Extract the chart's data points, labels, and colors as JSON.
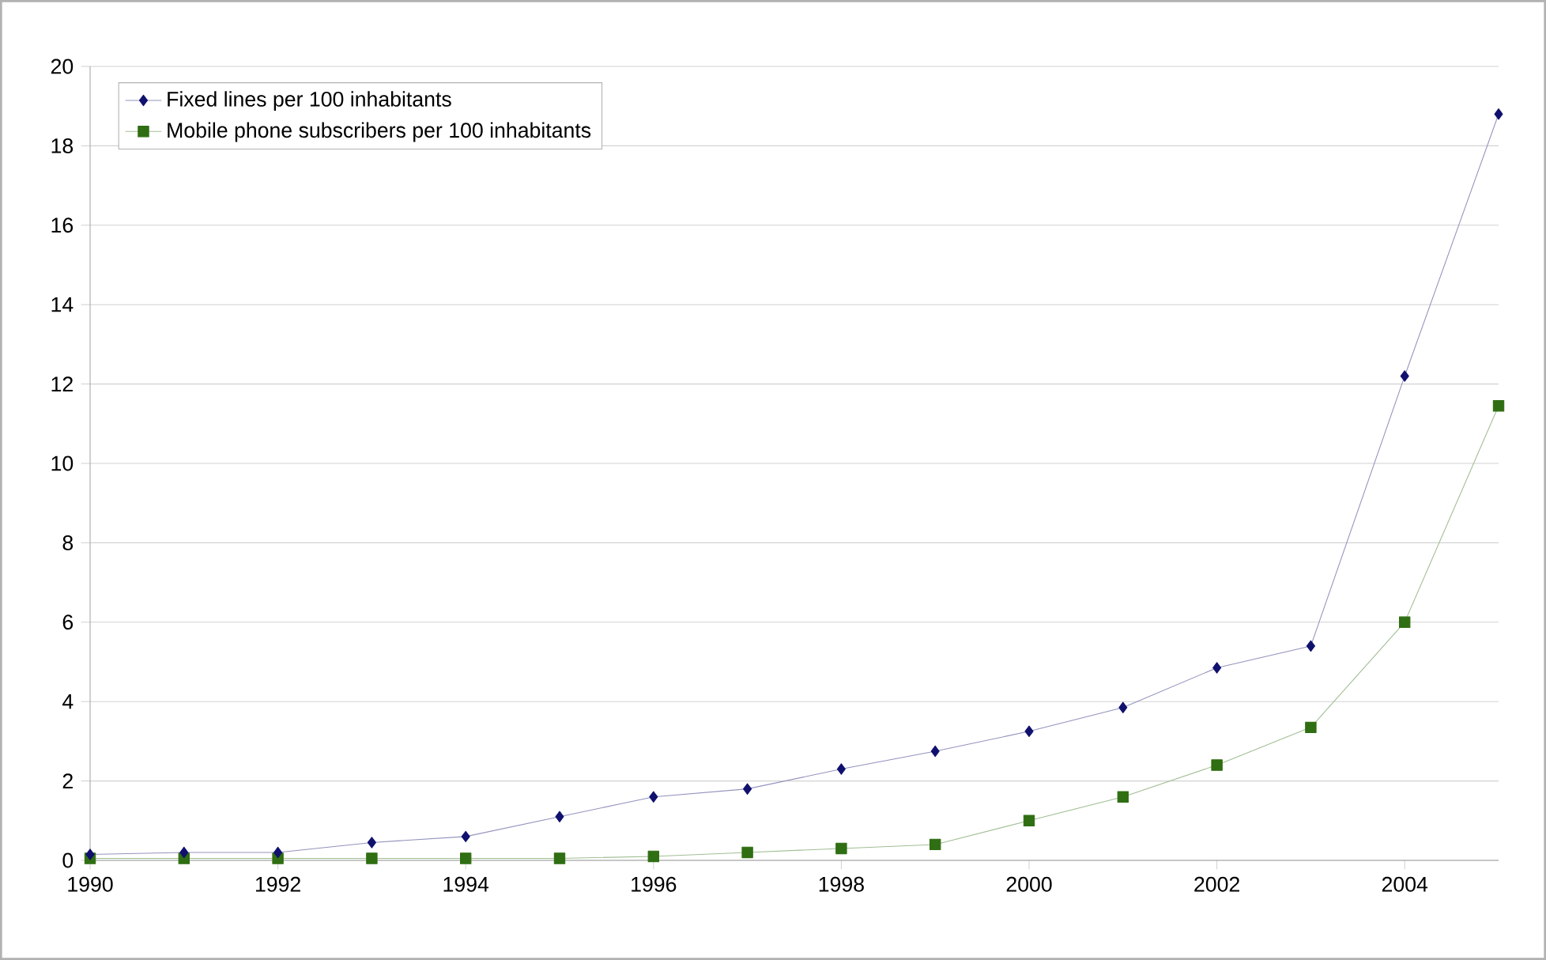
{
  "chart_data": {
    "type": "line",
    "x": [
      1990,
      1991,
      1992,
      1993,
      1994,
      1995,
      1996,
      1997,
      1998,
      1999,
      2000,
      2001,
      2002,
      2003,
      2004,
      2005
    ],
    "series": [
      {
        "name": "Fixed lines per 100 inhabitants",
        "color": "#10106e",
        "marker": "diamond",
        "values": [
          0.15,
          0.2,
          0.2,
          0.45,
          0.6,
          1.1,
          1.6,
          1.8,
          2.3,
          2.75,
          3.25,
          3.85,
          4.85,
          5.4,
          12.2,
          18.8
        ]
      },
      {
        "name": "Mobile phone subscribers per 100 inhabitants",
        "color": "#2f6e12",
        "marker": "square",
        "values": [
          0.05,
          0.05,
          0.05,
          0.05,
          0.05,
          0.05,
          0.1,
          0.2,
          0.3,
          0.4,
          1.0,
          1.6,
          2.4,
          3.35,
          6.0,
          11.45
        ]
      }
    ],
    "xlim": [
      1990,
      2005
    ],
    "xticks": [
      1990,
      1992,
      1994,
      1996,
      1998,
      2000,
      2002,
      2004
    ],
    "ylim": [
      0,
      20
    ],
    "yticks": [
      0,
      2,
      4,
      6,
      8,
      10,
      12,
      14,
      16,
      18,
      20
    ],
    "grid": "y",
    "legend": "top left",
    "line_style": "solid"
  }
}
